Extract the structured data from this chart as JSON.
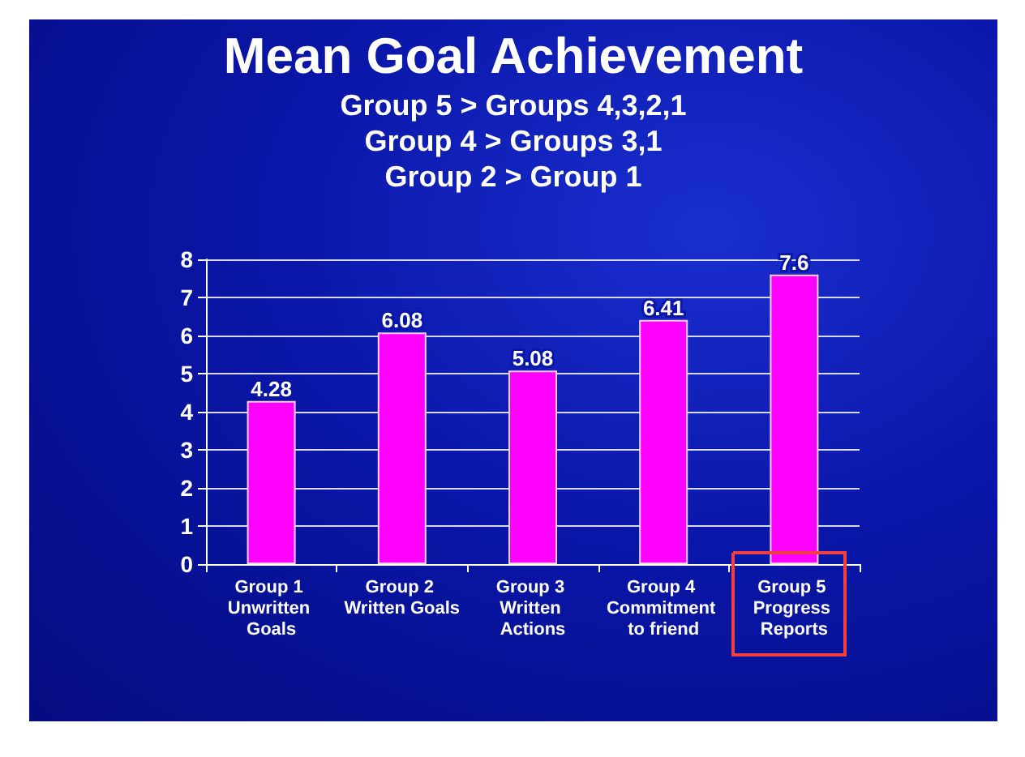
{
  "chart_data": {
    "type": "bar",
    "title": "Mean Goal Achievement",
    "subtitle": "Group 5 > Groups 4,3,2,1\nGroup 4 > Groups 3,1\nGroup 2 > Group 1",
    "categories": [
      "Group 1 Unwritten Goals",
      "Group 2 Written Goals",
      "Group 3 Written Actions",
      "Group 4 Commitment to friend",
      "Group 5 Progress Reports"
    ],
    "values": [
      4.28,
      6.08,
      5.08,
      6.41,
      7.6
    ],
    "color": "#ff00ff",
    "ylim": [
      0,
      8
    ],
    "yticks": [
      0,
      1,
      2,
      3,
      4,
      5,
      6,
      7,
      8
    ],
    "grid": true,
    "data_labels": true
  }
}
